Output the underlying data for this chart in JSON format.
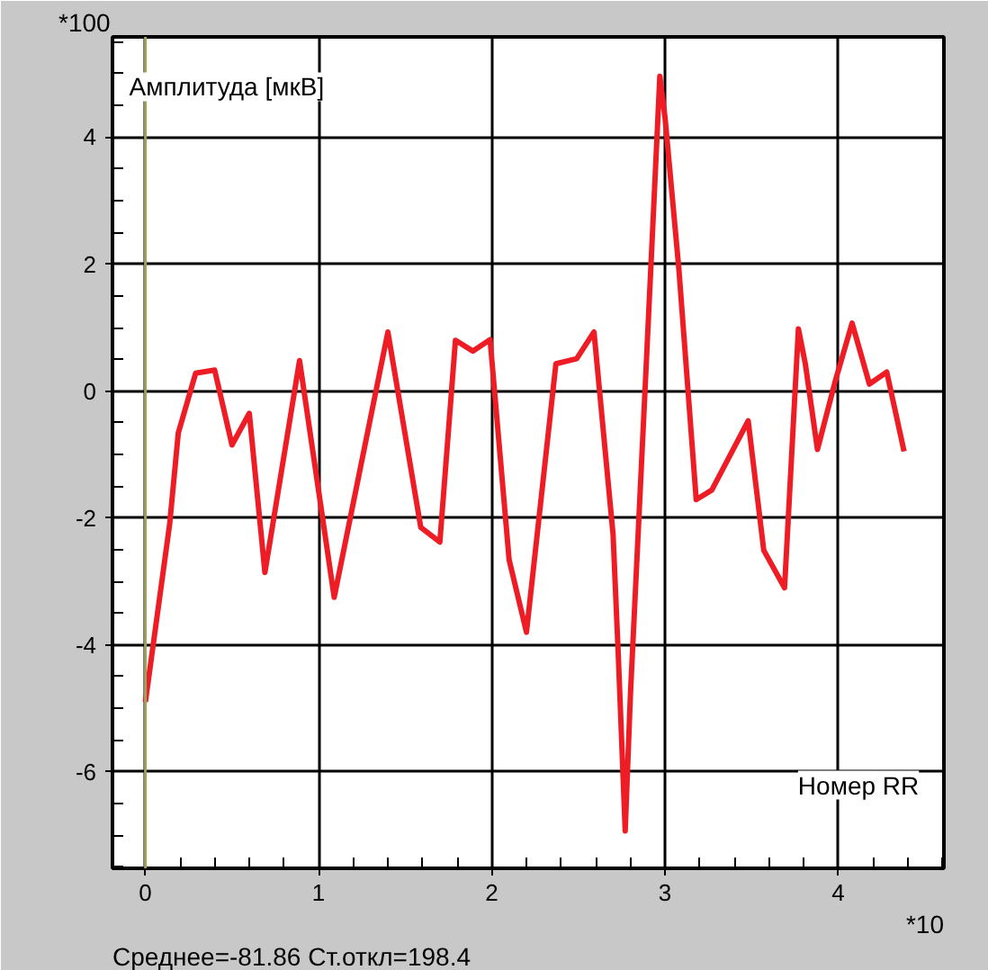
{
  "chart_data": {
    "type": "line",
    "xlabel": "Номер RR",
    "ylabel": "Амплитуда [мкВ]",
    "x": [
      0,
      0.14,
      0.19,
      0.29,
      0.4,
      0.5,
      0.6,
      0.69,
      0.89,
      1.09,
      1.4,
      1.59,
      1.7,
      1.79,
      1.89,
      1.99,
      2.1,
      2.2,
      2.37,
      2.49,
      2.59,
      2.7,
      2.73,
      2.77,
      2.8,
      2.89,
      2.94,
      2.97,
      3.0,
      3.08,
      3.18,
      3.27,
      3.48,
      3.57,
      3.69,
      3.77,
      3.81,
      3.88,
      3.98,
      4.08,
      4.18,
      4.28,
      4.38
    ],
    "values": [
      -4.9,
      -2.1,
      -0.66,
      0.28,
      0.33,
      -0.85,
      -0.35,
      -2.86,
      0.48,
      -3.25,
      0.93,
      -2.15,
      -2.38,
      0.8,
      0.63,
      0.81,
      -2.66,
      -3.8,
      0.43,
      0.51,
      0.93,
      -2.26,
      -4.15,
      -6.93,
      -4.8,
      0.33,
      3.21,
      4.96,
      4.31,
      1.92,
      -1.71,
      -1.56,
      -0.47,
      -2.51,
      -3.1,
      0.98,
      0.43,
      -0.92,
      0.13,
      1.07,
      0.11,
      0.3,
      -0.95
    ],
    "color": "#ee1c24",
    "line_style": "solid",
    "xlim": [
      -0.19,
      4.61
    ],
    "ylim": [
      -7.52,
      5.58
    ],
    "xticks": [
      0,
      1,
      2,
      3,
      4
    ],
    "yticks": [
      -6,
      -4,
      -2,
      0,
      2,
      4
    ],
    "grid": true,
    "ref_lines": [
      {
        "axis": "x",
        "value": 0,
        "label": null,
        "color": "#a0a060"
      }
    ],
    "annotations": [
      "*100",
      "*10",
      "Среднее=-81.86   Ст.откл=198.4"
    ]
  }
}
